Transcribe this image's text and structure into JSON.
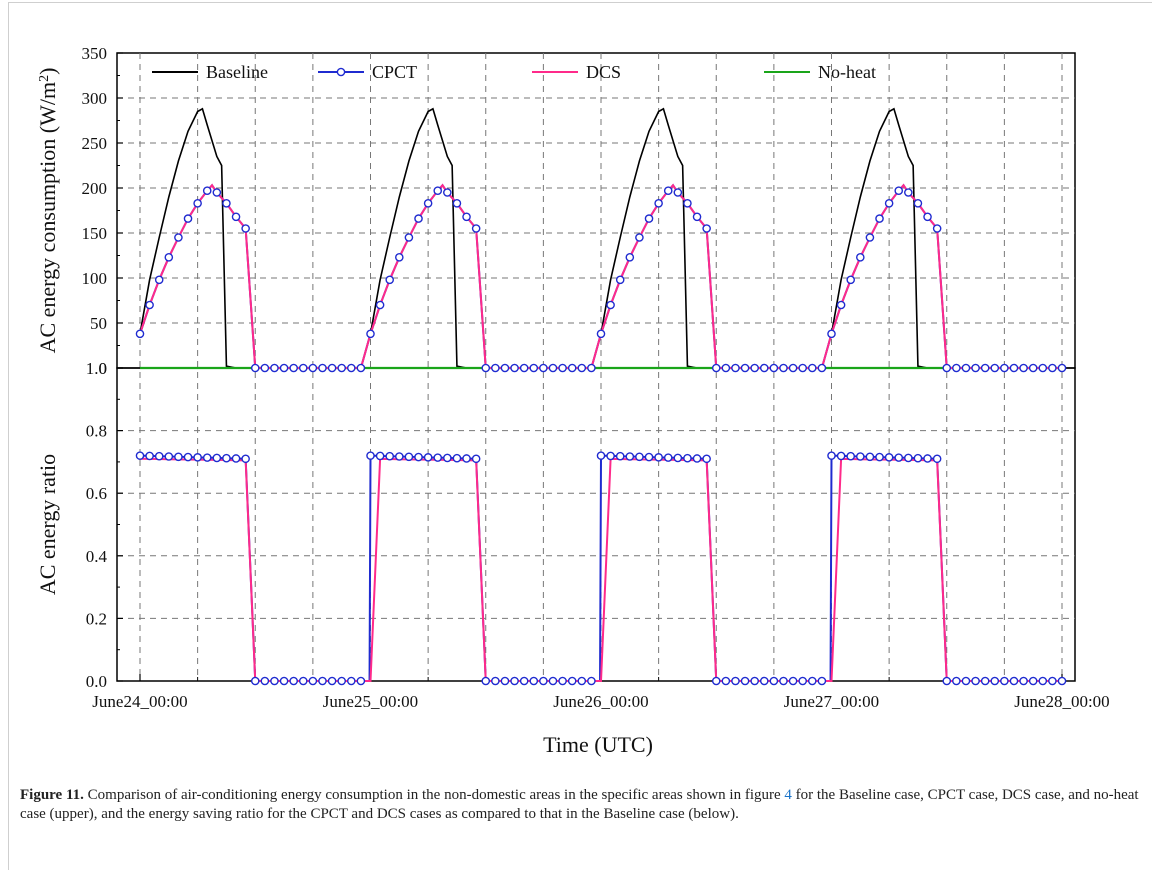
{
  "chart_data": [
    {
      "type": "line",
      "panel": "upper",
      "ylabel_main": "AC energy consumption (W/m",
      "ylabel_sup": "2",
      "ylabel_end": ")",
      "ylim": [
        0,
        350
      ],
      "yticks": [
        "0",
        "50",
        "100",
        "150",
        "200",
        "250",
        "300",
        "350"
      ],
      "grid": true,
      "legend_position": "top",
      "series": [
        {
          "name": "Baseline",
          "color": "#000000",
          "marker": false,
          "day": [
            [
              0,
              38
            ],
            [
              1,
              98
            ],
            [
              2,
              145
            ],
            [
              3,
              190
            ],
            [
              4,
              230
            ],
            [
              5,
              263
            ],
            [
              6,
              285
            ],
            [
              6.5,
              288
            ],
            [
              7,
              270
            ],
            [
              8,
              235
            ],
            [
              8.5,
              225
            ],
            [
              9,
              2
            ],
            [
              10,
              0
            ]
          ]
        },
        {
          "name": "CPCT",
          "color": "#1f2bd0",
          "marker": true,
          "day": [
            [
              0,
              38
            ],
            [
              1,
              70
            ],
            [
              2,
              98
            ],
            [
              3,
              123
            ],
            [
              4,
              145
            ],
            [
              5,
              166
            ],
            [
              6,
              183
            ],
            [
              7,
              197
            ],
            [
              7.5,
              203
            ],
            [
              8,
              195
            ],
            [
              9,
              183
            ],
            [
              10,
              168
            ],
            [
              11,
              155
            ],
            [
              12,
              0
            ]
          ]
        },
        {
          "name": "DCS",
          "color": "#ff2a8a",
          "marker": false,
          "day": [
            [
              0,
              38
            ],
            [
              1,
              70
            ],
            [
              2,
              98
            ],
            [
              3,
              123
            ],
            [
              4,
              145
            ],
            [
              5,
              166
            ],
            [
              6,
              183
            ],
            [
              7,
              197
            ],
            [
              7.5,
              203
            ],
            [
              8,
              195
            ],
            [
              9,
              183
            ],
            [
              10,
              168
            ],
            [
              11,
              155
            ],
            [
              12,
              0
            ]
          ]
        },
        {
          "name": "No-heat",
          "color": "#1aa51a",
          "marker": false,
          "value": 0
        }
      ]
    },
    {
      "type": "line",
      "panel": "lower",
      "ylabel": "AC energy ratio",
      "ylim": [
        0,
        1.0
      ],
      "yticks": [
        "0.0",
        "0.2",
        "0.4",
        "0.6",
        "0.8",
        "1.0"
      ],
      "grid": true,
      "series": [
        {
          "name": "CPCT",
          "color": "#1f2bd0",
          "marker": true,
          "plateau": [
            0.72,
            0.71
          ]
        },
        {
          "name": "DCS",
          "color": "#ff2a8a",
          "marker": false,
          "plateau": [
            0.71,
            0.705
          ]
        }
      ]
    }
  ],
  "xaxis": {
    "label": "Time (UTC)",
    "ticks": [
      "June24_00:00",
      "June25_00:00",
      "June26_00:00",
      "June27_00:00",
      "June28_00:00"
    ]
  },
  "caption": {
    "label": "Figure 11.",
    "text_before_ref": " Comparison of air-conditioning energy consumption in the non-domestic areas in the specific areas shown in figure ",
    "ref": "4",
    "text_after_ref": " for the Baseline case, CPCT case, DCS case, and no-heat case (upper), and the energy saving ratio for the CPCT and DCS cases as compared to that in the Baseline case (below)."
  }
}
